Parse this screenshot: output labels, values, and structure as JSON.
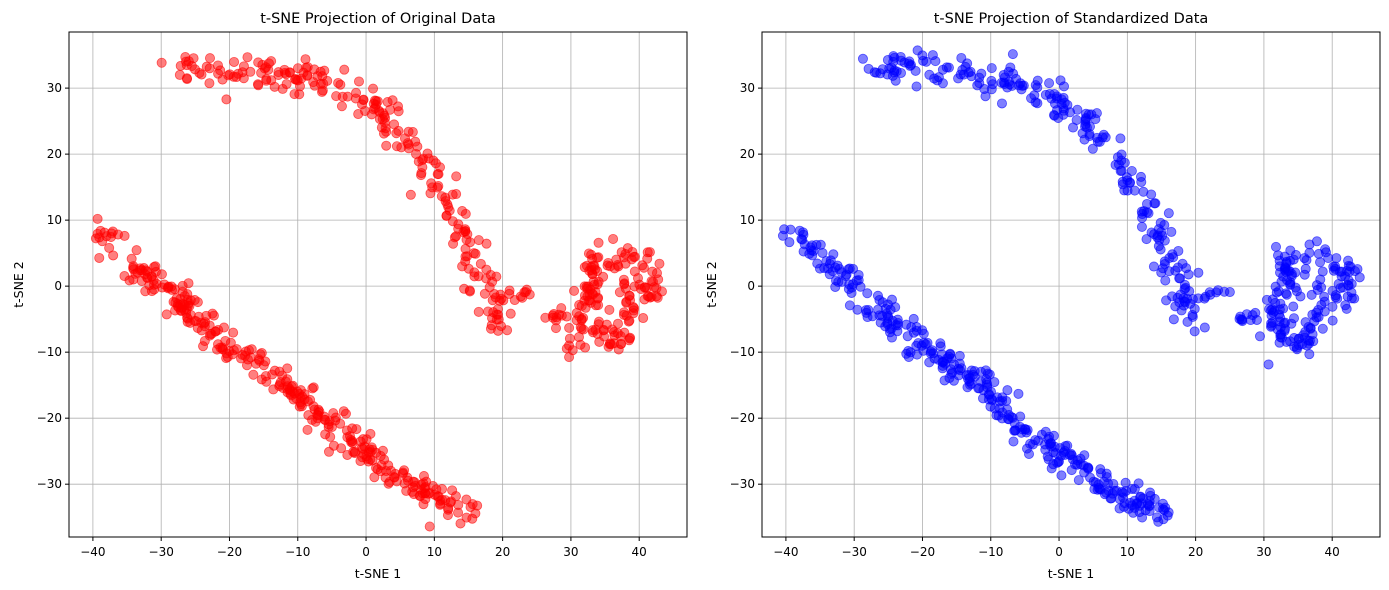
{
  "chart_data": [
    {
      "type": "scatter",
      "title": "t-SNE Projection of Original Data",
      "xlabel": "t-SNE 1",
      "ylabel": "t-SNE 2",
      "xlim": [
        -43.5,
        47
      ],
      "ylim": [
        -38,
        38.5
      ],
      "xticks": [
        -40,
        -30,
        -20,
        -10,
        0,
        10,
        20,
        30,
        40
      ],
      "yticks": [
        -30,
        -20,
        -10,
        0,
        10,
        20,
        30
      ],
      "grid": true,
      "color": "#ff0000",
      "alpha": 0.5,
      "series": [
        {
          "clusters": [
            {
              "kind": "arc",
              "points": [
                [
                  -28,
                  32.6
                ],
                [
                  -25,
                  33.2
                ],
                [
                  -22,
                  33.4
                ],
                [
                  -19,
                  33.0
                ],
                [
                  -15,
                  32.4
                ],
                [
                  -10,
                  31.5
                ],
                [
                  -6,
                  30.6
                ],
                [
                  -2,
                  29.6
                ],
                [
                  0,
                  28.7
                ],
                [
                  2,
                  27.0
                ],
                [
                  4,
                  24.5
                ],
                [
                  6,
                  22.0
                ],
                [
                  8,
                  19.5
                ],
                [
                  10,
                  16.5
                ],
                [
                  12,
                  13.0
                ],
                [
                  14,
                  9.0
                ],
                [
                  15,
                  6.0
                ],
                [
                  16.5,
                  3.0
                ],
                [
                  17.5,
                  0.0
                ],
                [
                  18.5,
                  -3.0
                ],
                [
                  19.5,
                  -6.0
                ]
              ],
              "n": 230,
              "spread": 1.2
            },
            {
              "kind": "diagonal",
              "points": [
                [
                  -39,
                  8.4
                ],
                [
                  -36,
                  5.5
                ],
                [
                  -33,
                  2.8
                ],
                [
                  -30,
                  0.2
                ],
                [
                  -27,
                  -2.5
                ],
                [
                  -24,
                  -5.5
                ],
                [
                  -21,
                  -8.5
                ],
                [
                  -18,
                  -10.5
                ],
                [
                  -15,
                  -12.5
                ],
                [
                  -12,
                  -14.5
                ],
                [
                  -9,
                  -17.5
                ],
                [
                  -6,
                  -21.0
                ],
                [
                  -3,
                  -23.5
                ],
                [
                  0,
                  -25.5
                ],
                [
                  3,
                  -27.5
                ],
                [
                  6,
                  -30.0
                ],
                [
                  9,
                  -31.5
                ],
                [
                  12,
                  -33.0
                ],
                [
                  15.5,
                  -34.5
                ]
              ],
              "n": 330,
              "spread": 1.1
            },
            {
              "kind": "bridge",
              "points": [
                [
                  19,
                  -2.0
                ],
                [
                  21,
                  -1.5
                ],
                [
                  23,
                  -1.2
                ],
                [
                  24.5,
                  -1.0
                ]
              ],
              "n": 10,
              "spread": 0.5
            },
            {
              "kind": "small",
              "points": [
                [
                  26.5,
                  -5.0
                ],
                [
                  28,
                  -4.5
                ],
                [
                  29,
                  -5.5
                ]
              ],
              "n": 10,
              "spread": 0.6
            },
            {
              "kind": "loop",
              "points": [
                [
                  30.5,
                  -10.0
                ],
                [
                  31,
                  -6.5
                ],
                [
                  31.5,
                  -3.0
                ],
                [
                  32.5,
                  0.5
                ],
                [
                  33,
                  4.0
                ],
                [
                  33.5,
                  5.0
                ],
                [
                  34,
                  2.0
                ],
                [
                  33.5,
                  -2.0
                ],
                [
                  32.5,
                  -5.0
                ],
                [
                  33,
                  -8.5
                ],
                [
                  35,
                  -8.0
                ],
                [
                  36.5,
                  -8.8
                ],
                [
                  37.5,
                  -6.5
                ],
                [
                  38.5,
                  -4.0
                ],
                [
                  38,
                  -1.0
                ],
                [
                  37,
                  1.5
                ],
                [
                  36,
                  3.0
                ],
                [
                  37,
                  5.0
                ],
                [
                  38,
                  5.8
                ],
                [
                  39,
                  4.0
                ],
                [
                  40,
                  3.0
                ],
                [
                  41,
                  4.0
                ],
                [
                  42,
                  2.0
                ],
                [
                  42.5,
                  0.0
                ],
                [
                  42,
                  -2.0
                ],
                [
                  40.5,
                  -1.0
                ],
                [
                  39.5,
                  1.0
                ]
              ],
              "n": 160,
              "spread": 0.9
            }
          ]
        }
      ]
    },
    {
      "type": "scatter",
      "title": "t-SNE Projection of Standardized Data",
      "xlabel": "t-SNE 1",
      "ylabel": "t-SNE 2",
      "xlim": [
        -43.5,
        47
      ],
      "ylim": [
        -38,
        38.5
      ],
      "xticks": [
        -40,
        -30,
        -20,
        -10,
        0,
        10,
        20,
        30,
        40
      ],
      "yticks": [
        -30,
        -20,
        -10,
        0,
        10,
        20,
        30
      ],
      "grid": true,
      "color": "#0000ff",
      "alpha": 0.5,
      "series": [
        {
          "clusters": [
            {
              "kind": "arc",
              "points": [
                [
                  -28,
                  32.6
                ],
                [
                  -25,
                  33.2
                ],
                [
                  -22,
                  33.4
                ],
                [
                  -19,
                  33.0
                ],
                [
                  -15,
                  32.4
                ],
                [
                  -10,
                  31.5
                ],
                [
                  -6,
                  30.6
                ],
                [
                  -2,
                  29.6
                ],
                [
                  0,
                  28.7
                ],
                [
                  2,
                  27.0
                ],
                [
                  4,
                  24.5
                ],
                [
                  6,
                  22.0
                ],
                [
                  8,
                  19.5
                ],
                [
                  10,
                  16.5
                ],
                [
                  12,
                  13.0
                ],
                [
                  14,
                  9.0
                ],
                [
                  15,
                  6.0
                ],
                [
                  16.5,
                  3.0
                ],
                [
                  17.5,
                  0.0
                ],
                [
                  18.5,
                  -3.0
                ],
                [
                  19.5,
                  -6.0
                ]
              ],
              "n": 230,
              "spread": 1.2
            },
            {
              "kind": "diagonal",
              "points": [
                [
                  -39,
                  8.4
                ],
                [
                  -36,
                  5.5
                ],
                [
                  -33,
                  2.8
                ],
                [
                  -30,
                  0.2
                ],
                [
                  -27,
                  -2.5
                ],
                [
                  -24,
                  -5.5
                ],
                [
                  -21,
                  -8.5
                ],
                [
                  -18,
                  -10.5
                ],
                [
                  -15,
                  -12.5
                ],
                [
                  -12,
                  -14.5
                ],
                [
                  -9,
                  -17.5
                ],
                [
                  -6,
                  -21.0
                ],
                [
                  -3,
                  -23.5
                ],
                [
                  0,
                  -25.5
                ],
                [
                  3,
                  -27.5
                ],
                [
                  6,
                  -30.0
                ],
                [
                  9,
                  -31.5
                ],
                [
                  12,
                  -33.0
                ],
                [
                  15.5,
                  -34.5
                ]
              ],
              "n": 330,
              "spread": 1.1
            },
            {
              "kind": "bridge",
              "points": [
                [
                  19,
                  -2.0
                ],
                [
                  21,
                  -1.5
                ],
                [
                  23,
                  -1.2
                ],
                [
                  24.5,
                  -1.0
                ]
              ],
              "n": 10,
              "spread": 0.5
            },
            {
              "kind": "small",
              "points": [
                [
                  26.5,
                  -5.0
                ],
                [
                  28,
                  -4.5
                ],
                [
                  29,
                  -5.5
                ]
              ],
              "n": 10,
              "spread": 0.6
            },
            {
              "kind": "loop",
              "points": [
                [
                  30.5,
                  -10.0
                ],
                [
                  31,
                  -6.5
                ],
                [
                  31.5,
                  -3.0
                ],
                [
                  32.5,
                  0.5
                ],
                [
                  33,
                  4.0
                ],
                [
                  33.5,
                  5.0
                ],
                [
                  34,
                  2.0
                ],
                [
                  33.5,
                  -2.0
                ],
                [
                  32.5,
                  -5.0
                ],
                [
                  33,
                  -8.5
                ],
                [
                  35,
                  -8.0
                ],
                [
                  36.5,
                  -8.8
                ],
                [
                  37.5,
                  -6.5
                ],
                [
                  38.5,
                  -4.0
                ],
                [
                  38,
                  -1.0
                ],
                [
                  37,
                  1.5
                ],
                [
                  36,
                  3.0
                ],
                [
                  37,
                  5.0
                ],
                [
                  38,
                  5.8
                ],
                [
                  39,
                  4.0
                ],
                [
                  40,
                  3.0
                ],
                [
                  41,
                  4.0
                ],
                [
                  42,
                  2.0
                ],
                [
                  42.5,
                  0.0
                ],
                [
                  42,
                  -2.0
                ],
                [
                  40.5,
                  -1.0
                ],
                [
                  39.5,
                  1.0
                ]
              ],
              "n": 160,
              "spread": 0.9
            }
          ]
        }
      ]
    }
  ]
}
